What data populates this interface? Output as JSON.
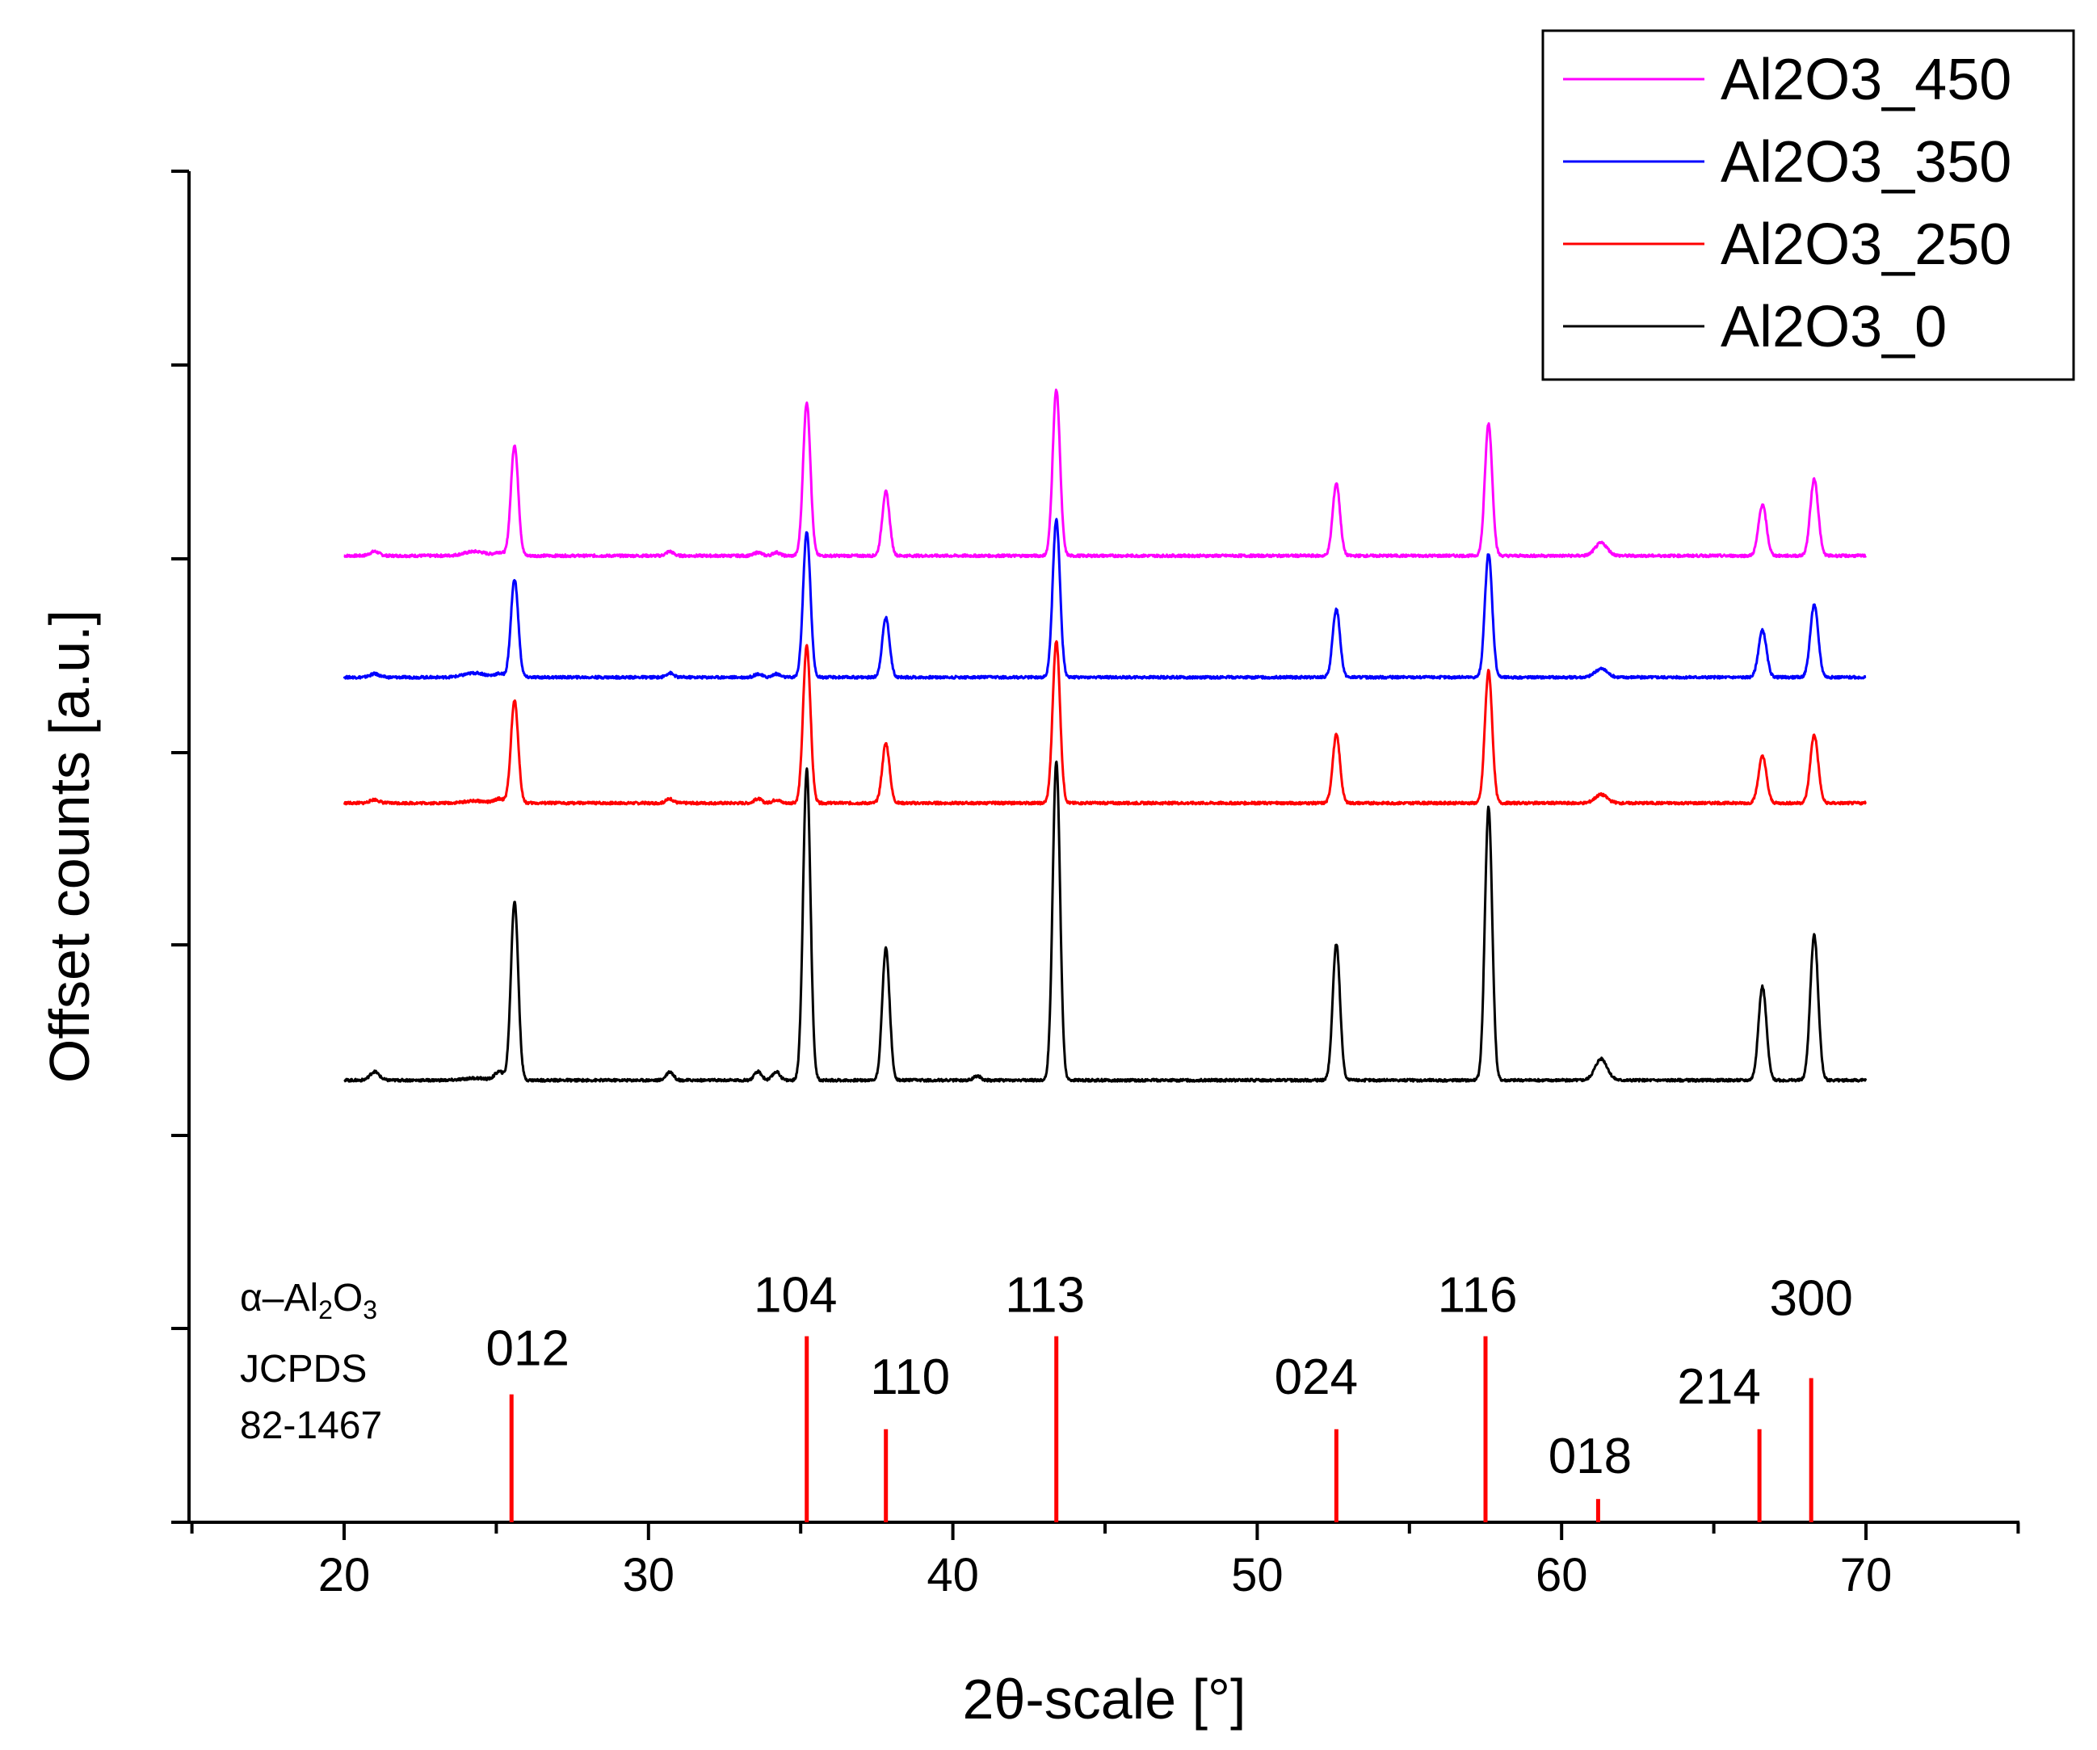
{
  "chart_data": {
    "type": "line",
    "title": "",
    "xlabel": "2θ-scale [°]",
    "ylabel": "Offset counts [a.u.]",
    "xlim": [
      15,
      75
    ],
    "xticks": [
      20,
      30,
      40,
      50,
      60,
      70
    ],
    "x_range": [
      20,
      70
    ],
    "legend_position": "top-right",
    "peaks": [
      {
        "pos": 21.0,
        "w": 0.15
      },
      {
        "pos": 24.3,
        "w": 0.35
      },
      {
        "pos": 25.1,
        "w": 0.15
      },
      {
        "pos": 25.6,
        "w": 0.12
      },
      {
        "pos": 30.7,
        "w": 0.12
      },
      {
        "pos": 33.6,
        "w": 0.12
      },
      {
        "pos": 34.2,
        "w": 0.12
      },
      {
        "pos": 35.2,
        "w": 0.12
      },
      {
        "pos": 37.8,
        "w": 0.12
      },
      {
        "pos": 40.8,
        "w": 0.12
      },
      {
        "pos": 43.4,
        "w": 0.12
      },
      {
        "pos": 52.6,
        "w": 0.12
      },
      {
        "pos": 57.6,
        "w": 0.12
      },
      {
        "pos": 61.3,
        "w": 0.2
      },
      {
        "pos": 66.6,
        "w": 0.13
      },
      {
        "pos": 68.3,
        "w": 0.13
      }
    ],
    "series": [
      {
        "name": "Al2O3_450",
        "color": "#ff00ff",
        "baseline": 0.6,
        "amps": [
          0.01,
          0.01,
          0.008,
          0.26,
          0.01,
          0.008,
          0.008,
          0.36,
          0.15,
          0.0,
          0.39,
          0.17,
          0.31,
          0.03,
          0.12,
          0.18
        ]
      },
      {
        "name": "Al2O3_350",
        "color": "#0000ff",
        "baseline": 0.315,
        "amps": [
          0.008,
          0.01,
          0.008,
          0.23,
          0.01,
          0.008,
          0.008,
          0.34,
          0.14,
          0.0,
          0.37,
          0.16,
          0.29,
          0.02,
          0.11,
          0.17
        ]
      },
      {
        "name": "Al2O3_250",
        "color": "#ff0000",
        "baseline": 0.02,
        "amps": [
          0.008,
          0.005,
          0.01,
          0.24,
          0.01,
          0.01,
          0.008,
          0.37,
          0.14,
          0.0,
          0.38,
          0.16,
          0.31,
          0.02,
          0.11,
          0.16
        ]
      },
      {
        "name": "Al2O3_0",
        "color": "#000000",
        "baseline": -0.63,
        "amps": [
          0.02,
          0.005,
          0.02,
          0.42,
          0.02,
          0.02,
          0.02,
          0.73,
          0.31,
          0.01,
          0.75,
          0.32,
          0.64,
          0.05,
          0.22,
          0.34
        ]
      }
    ],
    "reference": {
      "title_greek": "α",
      "title_main": "–Al",
      "title_sub1": "2",
      "title_mid": "O",
      "title_sub2": "3",
      "line1": "JCPDS",
      "line2": "82-1467",
      "color": "#ff0000",
      "lines": [
        {
          "pos": 25.5,
          "intensity": 0.55,
          "label": "012"
        },
        {
          "pos": 35.2,
          "intensity": 0.8,
          "label": "104"
        },
        {
          "pos": 37.8,
          "intensity": 0.4,
          "label": "110"
        },
        {
          "pos": 43.4,
          "intensity": 0.8,
          "label": "113"
        },
        {
          "pos": 52.6,
          "intensity": 0.4,
          "label": "024"
        },
        {
          "pos": 57.5,
          "intensity": 0.8,
          "label": "116"
        },
        {
          "pos": 61.2,
          "intensity": 0.1,
          "label": "018"
        },
        {
          "pos": 66.5,
          "intensity": 0.4,
          "label": "214"
        },
        {
          "pos": 68.2,
          "intensity": 0.62,
          "label": "300"
        }
      ]
    }
  }
}
